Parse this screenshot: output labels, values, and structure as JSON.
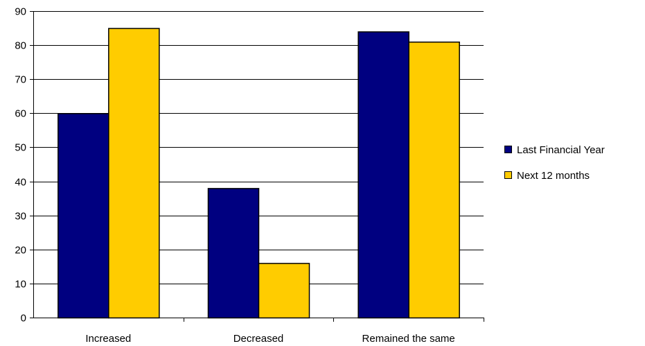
{
  "chart_data": {
    "type": "bar",
    "categories": [
      "Increased",
      "Decreased",
      "Remained the same"
    ],
    "series": [
      {
        "name": "Last Financial Year",
        "values": [
          60,
          38,
          84
        ],
        "color": "#000080"
      },
      {
        "name": "Next 12 months",
        "values": [
          85,
          16,
          81
        ],
        "color": "#FFCC00"
      }
    ],
    "title": "",
    "xlabel": "",
    "ylabel": "",
    "ylim": [
      0,
      90
    ],
    "yticks": [
      "0",
      "10",
      "20",
      "30",
      "40",
      "50",
      "60",
      "70",
      "80",
      "90"
    ],
    "grid": true,
    "legend_position": "right"
  }
}
